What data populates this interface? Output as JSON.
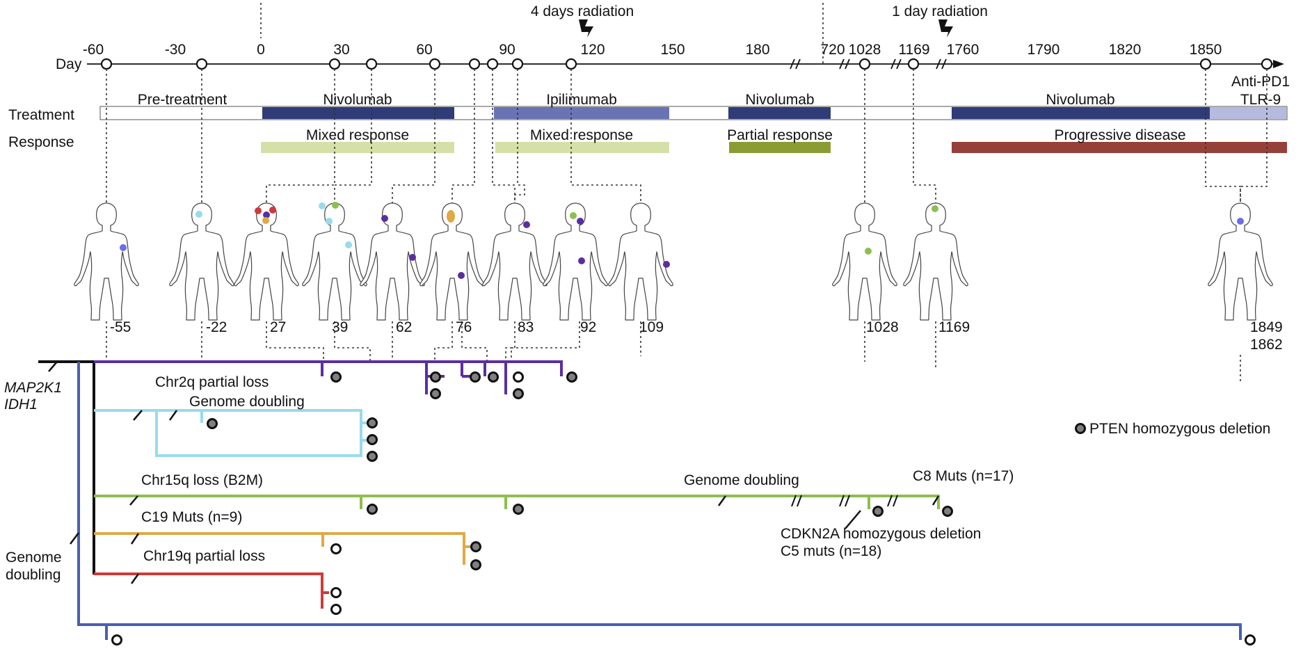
{
  "timeline": {
    "axis_label": "Day",
    "ticks": [
      "-60",
      "-30",
      "0",
      "30",
      "60",
      "90",
      "120",
      "150",
      "180",
      "720",
      "1028",
      "1169",
      "1760",
      "1790",
      "1820",
      "1850"
    ],
    "radiation": [
      "4 days radiation",
      "1 day radiation"
    ],
    "sample_days": [
      -55,
      -22,
      27,
      39,
      62,
      76,
      83,
      92,
      109,
      1028,
      1169,
      1849,
      1862
    ]
  },
  "rows": {
    "treatment": "Treatment",
    "response": "Response"
  },
  "treatments": [
    {
      "label": "Pre-treatment",
      "color": "#ffffff"
    },
    {
      "label": "Nivolumab",
      "color": "#2f3c78"
    },
    {
      "label": "Ipilimumab",
      "color": "#6a73b3"
    },
    {
      "label": "Nivolumab",
      "color": "#2f3c78"
    },
    {
      "label": "Nivolumab",
      "color": "#2f3c78"
    },
    {
      "label_line1": "Anti-PD1",
      "label_line2": "TLR-9",
      "color": "#b6bade"
    }
  ],
  "responses": [
    {
      "label": "Mixed response",
      "color": "#d5e0a8"
    },
    {
      "label": "Mixed response",
      "color": "#d5e0a8"
    },
    {
      "label": "Partial response",
      "color": "#8b9c35"
    },
    {
      "label": "Progressive disease",
      "color": "#96403a"
    }
  ],
  "body_labels": [
    "-55",
    "-22",
    "27",
    "39",
    "62",
    "76",
    "83",
    "92",
    "109",
    "1028",
    "1169",
    "1849",
    "1862"
  ],
  "tree": {
    "root_line1": "MAP2K1",
    "root_line2": "IDH1",
    "genome_doubling_1": "Genome",
    "genome_doubling_2": "doubling",
    "events": {
      "chr2q": "Chr2q partial loss",
      "gd_cyan": "Genome doubling",
      "chr15q": "Chr15q loss (B2M)",
      "gd_green": "Genome doubling",
      "c8": "C8 Muts (n=17)",
      "cdkn2a": "CDKN2A homozygous deletion",
      "c5": "C5 muts (n=18)",
      "c19": "C19 Muts (n=9)",
      "chr19q": "Chr19q partial loss"
    },
    "legend": "PTEN homozygous deletion"
  },
  "colors": {
    "purple": "#5b2ea0",
    "cyan": "#98dbea",
    "green": "#8cbf4f",
    "orange": "#e0a945",
    "red": "#cf3a3a",
    "blue": "#4a5fb0",
    "lightpurple": "#6a6ee8"
  }
}
